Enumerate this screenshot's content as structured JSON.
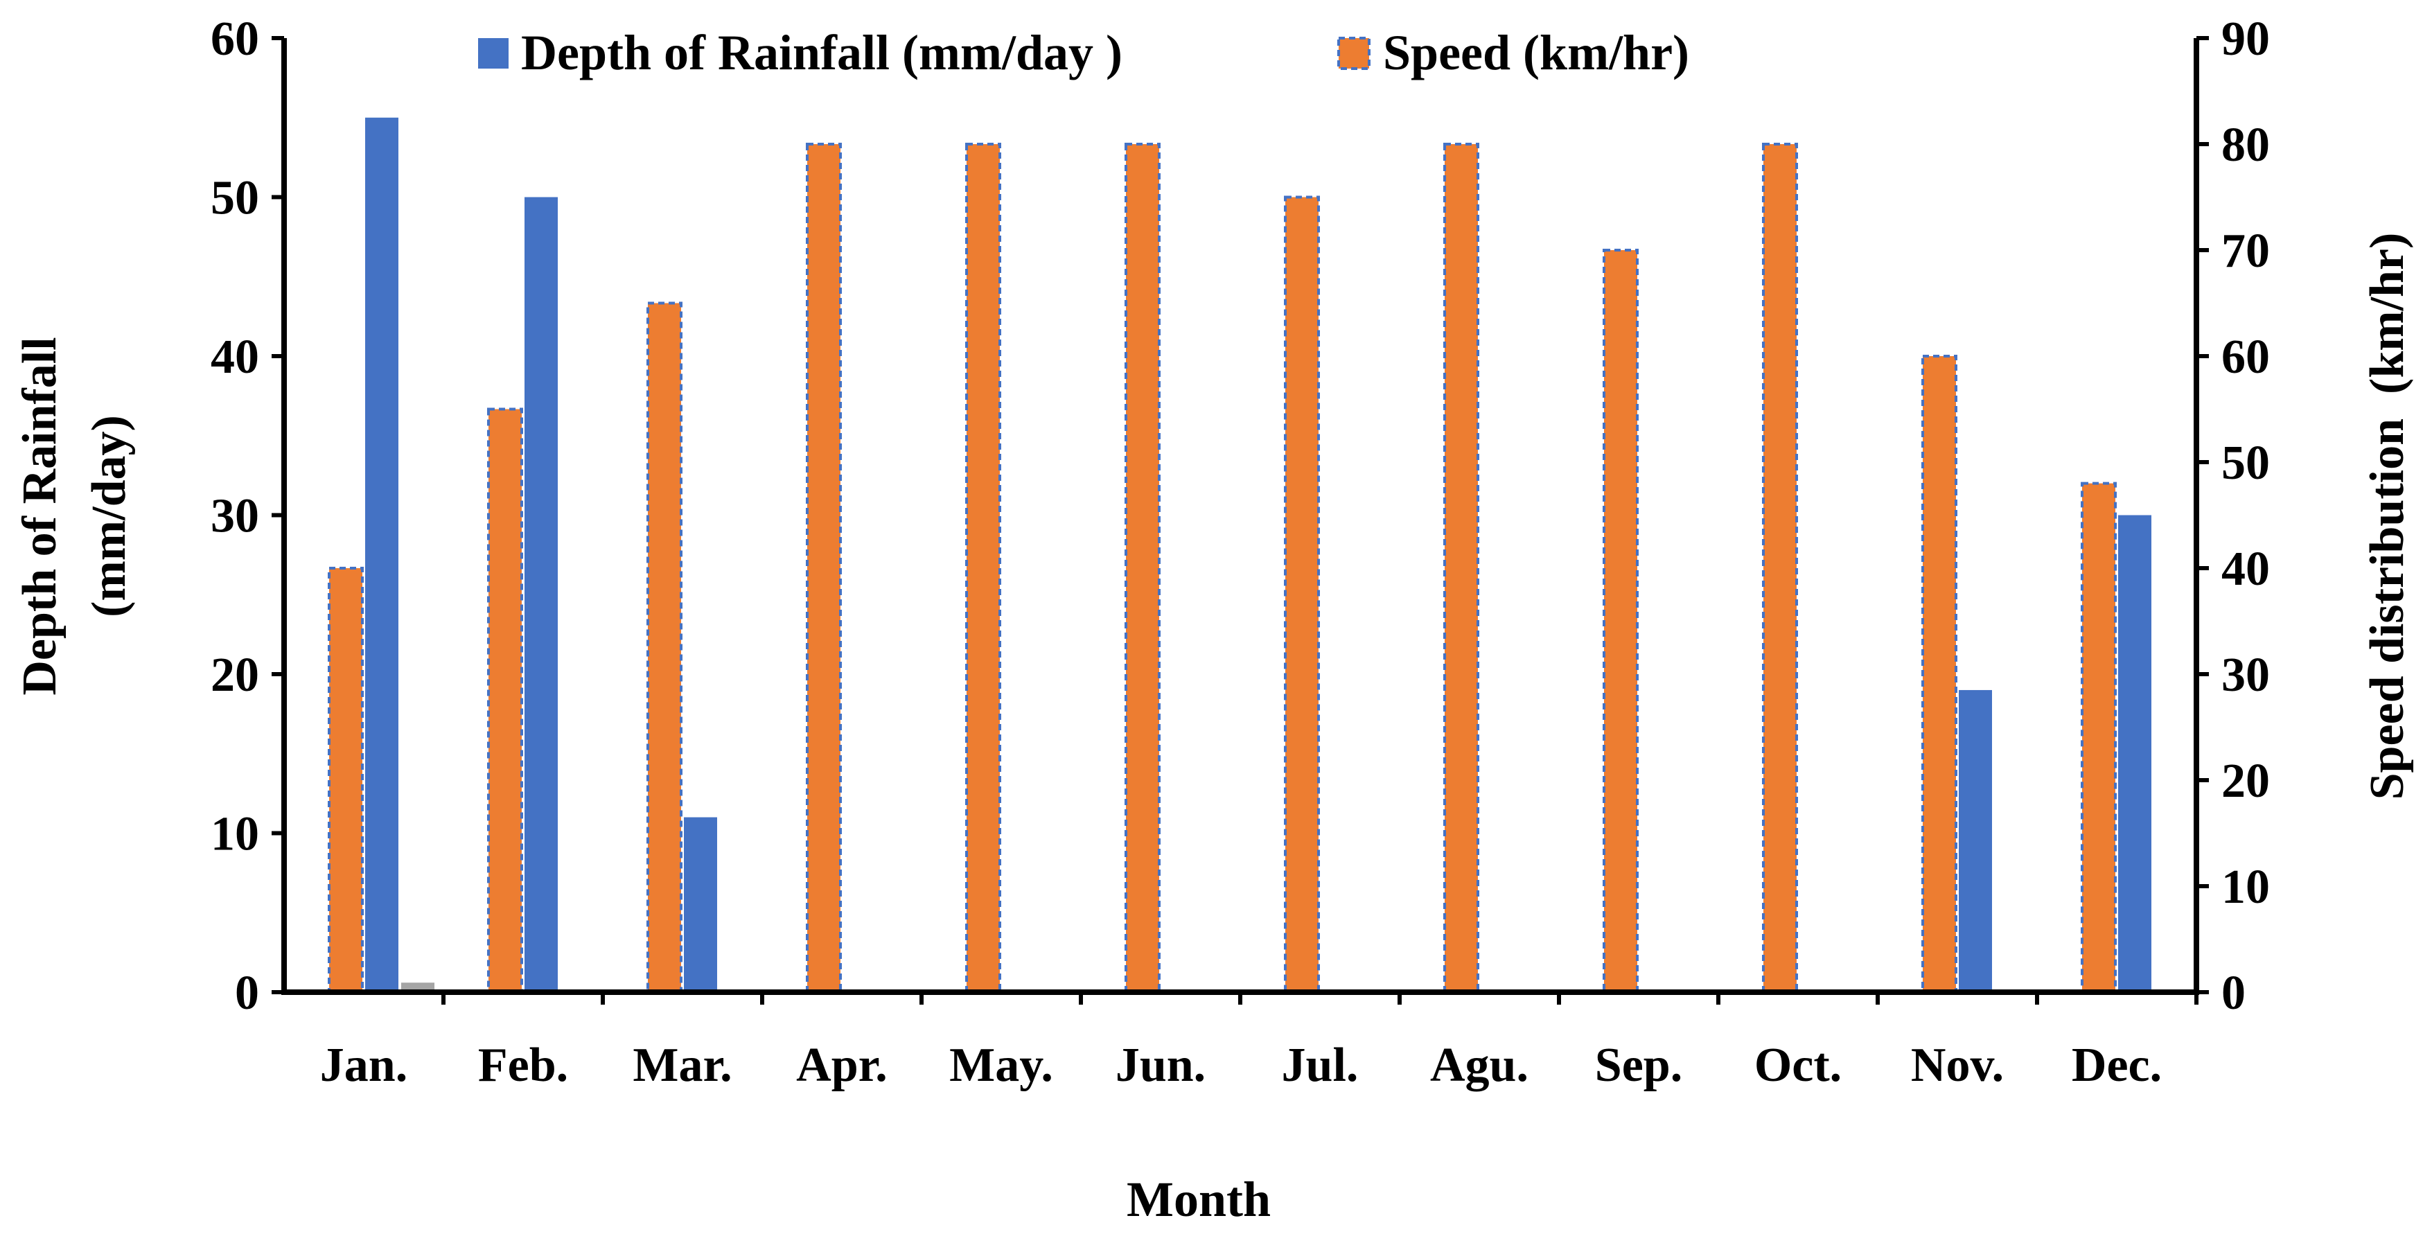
{
  "chart_data": {
    "type": "bar",
    "categories": [
      "Jan.",
      "Feb.",
      "Mar.",
      "Apr.",
      "May.",
      "Jun.",
      "Jul.",
      "Agu.",
      "Sep.",
      "Oct.",
      "Nov.",
      "Dec."
    ],
    "series": [
      {
        "name": "Depth of Rainfall (mm/day )",
        "axis": "left",
        "color": "#4472C4",
        "values": [
          55,
          50,
          11,
          0,
          0,
          0,
          0,
          0,
          0,
          0,
          19,
          30
        ]
      },
      {
        "name": "Speed (km/hr)",
        "axis": "right",
        "color": "#ED7D31",
        "border_color": "#4472C4",
        "border_style": "dashed",
        "values": [
          40,
          55,
          65,
          80,
          80,
          80,
          75,
          80,
          70,
          80,
          60,
          48
        ]
      }
    ],
    "extra_marks": [
      {
        "category": "Jan.",
        "axis": "left",
        "value": 0.6,
        "color": "#A5A5A5"
      }
    ],
    "title": "",
    "xlabel": "Month",
    "ylabel_left": [
      "Depth of Rainfall",
      "(mm/day)"
    ],
    "ylabel_right": "Speed distribution  (km/hr)",
    "ylim_left": [
      0,
      60
    ],
    "yticks_left": [
      0,
      10,
      20,
      30,
      40,
      50,
      60
    ],
    "ylim_right": [
      0,
      90
    ],
    "yticks_right": [
      0,
      10,
      20,
      30,
      40,
      50,
      60,
      70,
      80,
      90
    ],
    "grid": false,
    "legend_position": "top"
  }
}
